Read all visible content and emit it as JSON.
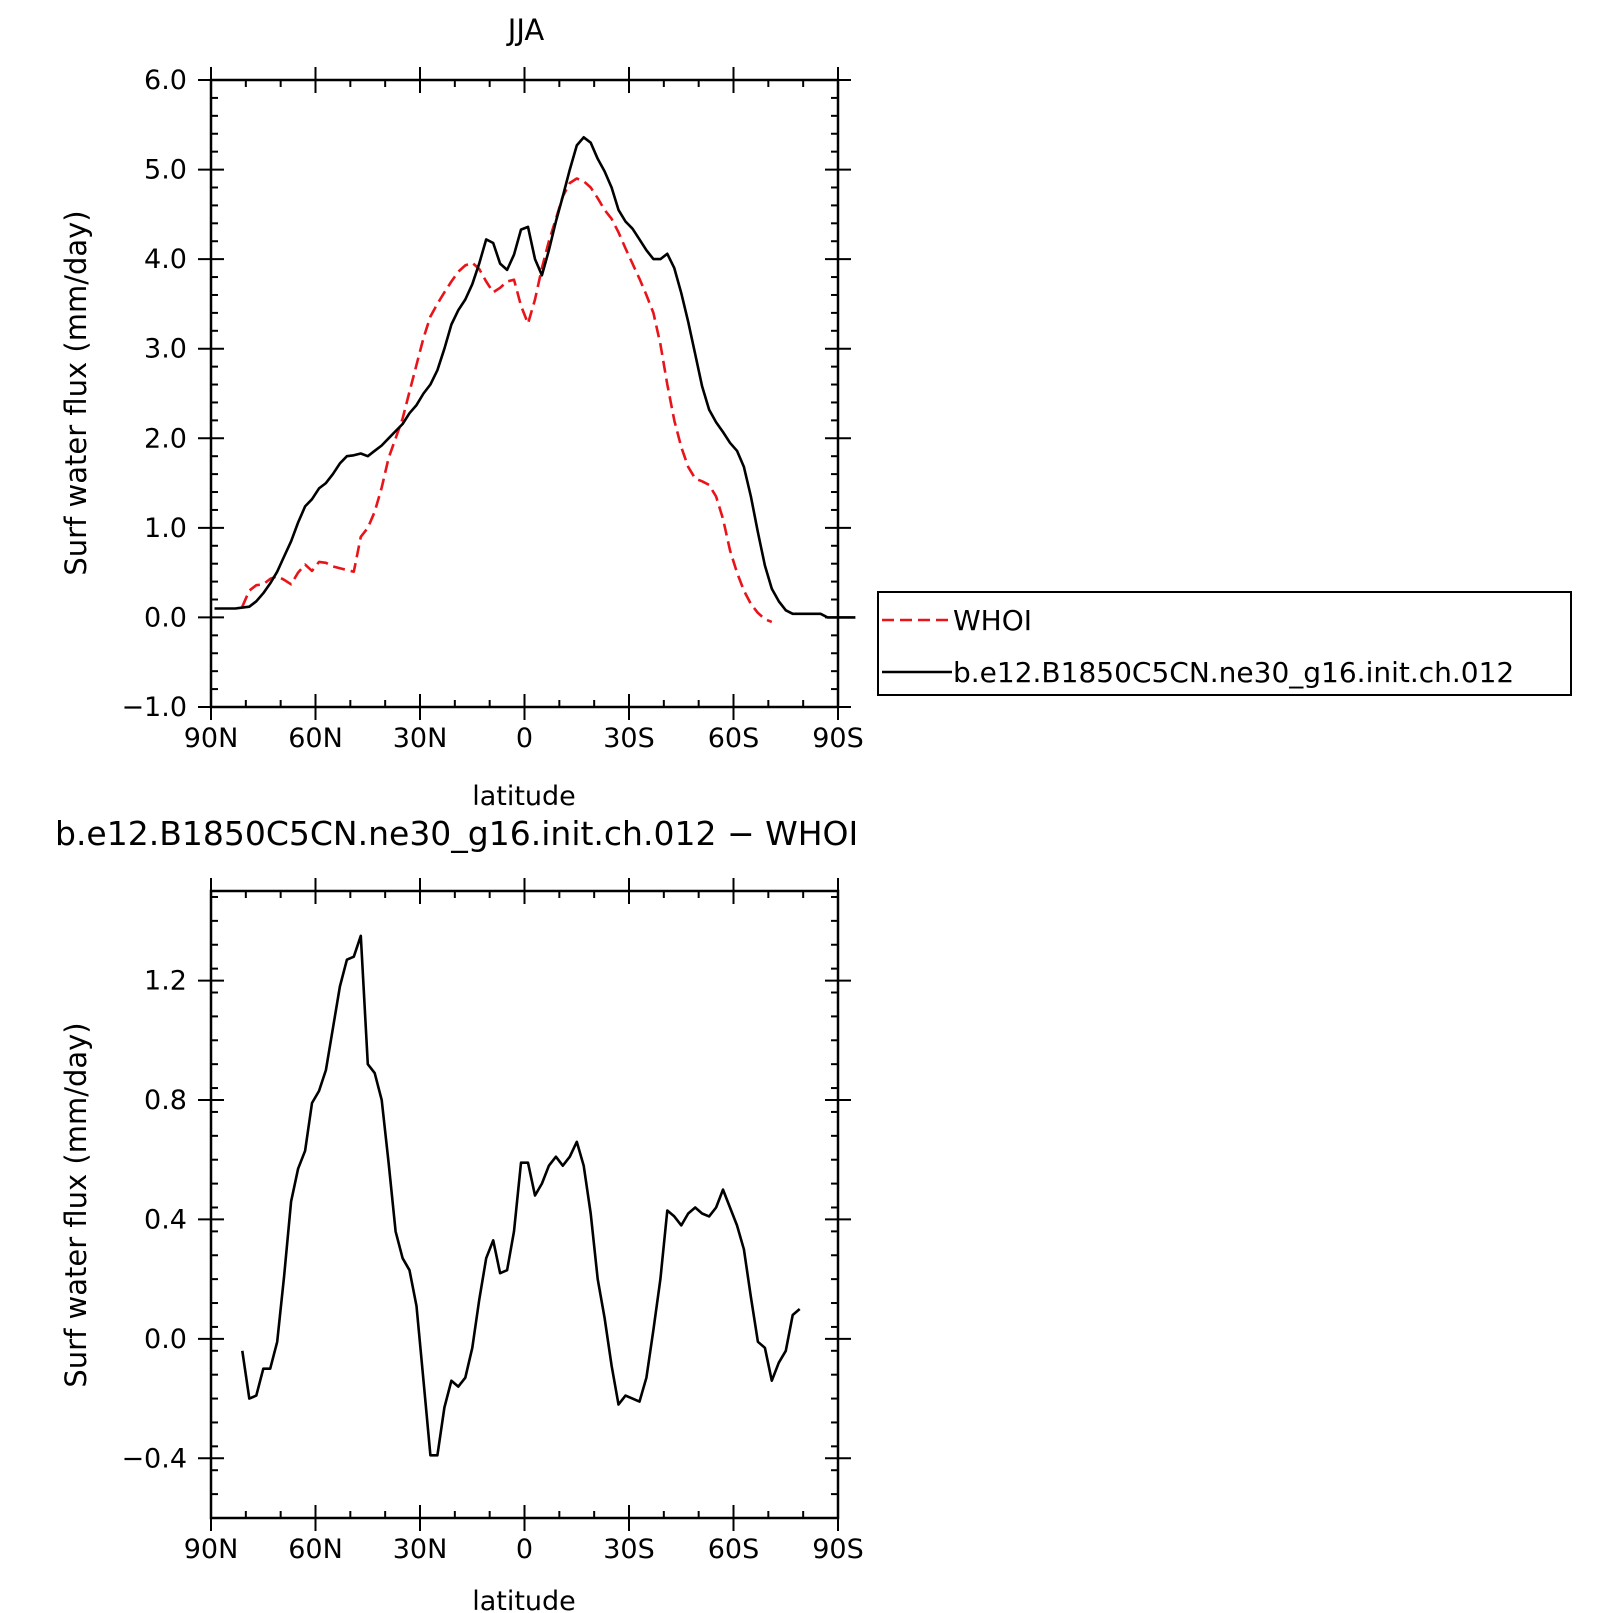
{
  "chart_data": [
    {
      "type": "line",
      "title": "JJA",
      "xlabel": "latitude",
      "ylabel": "Surf water flux (mm/day)",
      "xlim": [
        90,
        -90
      ],
      "ylim": [
        -1.0,
        6.0
      ],
      "xticks": [
        {
          "v": 90,
          "label": "90N"
        },
        {
          "v": 60,
          "label": "60N"
        },
        {
          "v": 30,
          "label": "30N"
        },
        {
          "v": 0,
          "label": "0"
        },
        {
          "v": -30,
          "label": "30S"
        },
        {
          "v": -60,
          "label": "60S"
        },
        {
          "v": -90,
          "label": "90S"
        }
      ],
      "yticks": [
        {
          "v": 6.0,
          "label": "6.0"
        },
        {
          "v": 5.0,
          "label": "5.0"
        },
        {
          "v": 4.0,
          "label": "4.0"
        },
        {
          "v": 3.0,
          "label": "3.0"
        },
        {
          "v": 2.0,
          "label": "2.0"
        },
        {
          "v": 1.0,
          "label": "1.0"
        },
        {
          "v": 0.0,
          "label": "0.0"
        },
        {
          "v": -1.0,
          "label": "−1.0"
        }
      ],
      "legend": {
        "position": "right"
      },
      "grid": false,
      "series": [
        {
          "name": "WHOI",
          "color": "#e8141a",
          "dash": "dashed",
          "points": [
            [
              81,
              0.12
            ],
            [
              79,
              0.3
            ],
            [
              77,
              0.36
            ],
            [
              75,
              0.37
            ],
            [
              73,
              0.43
            ],
            [
              71,
              0.46
            ],
            [
              69,
              0.42
            ],
            [
              67,
              0.37
            ],
            [
              65,
              0.5
            ],
            [
              63,
              0.59
            ],
            [
              61,
              0.52
            ],
            [
              59,
              0.62
            ],
            [
              57,
              0.61
            ],
            [
              55,
              0.57
            ],
            [
              53,
              0.55
            ],
            [
              51,
              0.53
            ],
            [
              49,
              0.51
            ],
            [
              47,
              0.9
            ],
            [
              45,
              1.0
            ],
            [
              43,
              1.18
            ],
            [
              41,
              1.45
            ],
            [
              39,
              1.78
            ],
            [
              37,
              2.0
            ],
            [
              35,
              2.22
            ],
            [
              33,
              2.52
            ],
            [
              31,
              2.82
            ],
            [
              29,
              3.12
            ],
            [
              27,
              3.36
            ],
            [
              25,
              3.5
            ],
            [
              23,
              3.63
            ],
            [
              21,
              3.75
            ],
            [
              19,
              3.86
            ],
            [
              17,
              3.93
            ],
            [
              15,
              3.96
            ],
            [
              13,
              3.89
            ],
            [
              11,
              3.75
            ],
            [
              9,
              3.63
            ],
            [
              7,
              3.68
            ],
            [
              5,
              3.75
            ],
            [
              3,
              3.77
            ],
            [
              1,
              3.48
            ],
            [
              -1,
              3.28
            ],
            [
              -3,
              3.55
            ],
            [
              -5,
              3.9
            ],
            [
              -7,
              4.2
            ],
            [
              -9,
              4.45
            ],
            [
              -11,
              4.7
            ],
            [
              -13,
              4.85
            ],
            [
              -15,
              4.9
            ],
            [
              -17,
              4.87
            ],
            [
              -19,
              4.8
            ],
            [
              -21,
              4.68
            ],
            [
              -23,
              4.55
            ],
            [
              -25,
              4.45
            ],
            [
              -27,
              4.3
            ],
            [
              -29,
              4.12
            ],
            [
              -31,
              3.95
            ],
            [
              -33,
              3.78
            ],
            [
              -35,
              3.6
            ],
            [
              -37,
              3.4
            ],
            [
              -39,
              3.05
            ],
            [
              -41,
              2.6
            ],
            [
              -43,
              2.2
            ],
            [
              -45,
              1.9
            ],
            [
              -47,
              1.68
            ],
            [
              -49,
              1.55
            ],
            [
              -51,
              1.52
            ],
            [
              -53,
              1.48
            ],
            [
              -55,
              1.35
            ],
            [
              -57,
              1.1
            ],
            [
              -59,
              0.75
            ],
            [
              -61,
              0.5
            ],
            [
              -63,
              0.3
            ],
            [
              -65,
              0.15
            ],
            [
              -67,
              0.05
            ],
            [
              -69,
              -0.02
            ],
            [
              -71,
              -0.05
            ]
          ]
        },
        {
          "name": "b.e12.B1850C5CN.ne30_g16.init.ch.012",
          "color": "#000000",
          "dash": "solid",
          "points": [
            [
              89,
              0.1
            ],
            [
              87,
              0.1
            ],
            [
              85,
              0.1
            ],
            [
              83,
              0.1
            ],
            [
              81,
              0.11
            ],
            [
              79,
              0.12
            ],
            [
              77,
              0.18
            ],
            [
              75,
              0.27
            ],
            [
              73,
              0.38
            ],
            [
              71,
              0.51
            ],
            [
              69,
              0.68
            ],
            [
              67,
              0.85
            ],
            [
              65,
              1.06
            ],
            [
              63,
              1.24
            ],
            [
              61,
              1.32
            ],
            [
              59,
              1.44
            ],
            [
              57,
              1.5
            ],
            [
              55,
              1.6
            ],
            [
              53,
              1.72
            ],
            [
              51,
              1.8
            ],
            [
              49,
              1.81
            ],
            [
              47,
              1.83
            ],
            [
              45,
              1.8
            ],
            [
              43,
              1.86
            ],
            [
              41,
              1.92
            ],
            [
              39,
              2.0
            ],
            [
              37,
              2.08
            ],
            [
              35,
              2.16
            ],
            [
              33,
              2.28
            ],
            [
              31,
              2.37
            ],
            [
              29,
              2.5
            ],
            [
              27,
              2.6
            ],
            [
              25,
              2.76
            ],
            [
              23,
              3.0
            ],
            [
              21,
              3.27
            ],
            [
              19,
              3.43
            ],
            [
              17,
              3.55
            ],
            [
              15,
              3.72
            ],
            [
              13,
              3.95
            ],
            [
              11,
              4.22
            ],
            [
              9,
              4.18
            ],
            [
              7,
              3.95
            ],
            [
              5,
              3.88
            ],
            [
              3,
              4.05
            ],
            [
              1,
              4.33
            ],
            [
              -1,
              4.36
            ],
            [
              -3,
              4.0
            ],
            [
              -5,
              3.82
            ],
            [
              -7,
              4.1
            ],
            [
              -9,
              4.42
            ],
            [
              -11,
              4.7
            ],
            [
              -13,
              5.0
            ],
            [
              -15,
              5.27
            ],
            [
              -17,
              5.36
            ],
            [
              -19,
              5.3
            ],
            [
              -21,
              5.12
            ],
            [
              -23,
              4.98
            ],
            [
              -25,
              4.8
            ],
            [
              -27,
              4.55
            ],
            [
              -29,
              4.42
            ],
            [
              -31,
              4.34
            ],
            [
              -33,
              4.22
            ],
            [
              -35,
              4.1
            ],
            [
              -37,
              4.0
            ],
            [
              -39,
              4.0
            ],
            [
              -41,
              4.06
            ],
            [
              -43,
              3.9
            ],
            [
              -45,
              3.62
            ],
            [
              -47,
              3.3
            ],
            [
              -49,
              2.94
            ],
            [
              -51,
              2.58
            ],
            [
              -53,
              2.32
            ],
            [
              -55,
              2.18
            ],
            [
              -57,
              2.07
            ],
            [
              -59,
              1.95
            ],
            [
              -61,
              1.86
            ],
            [
              -63,
              1.68
            ],
            [
              -65,
              1.35
            ],
            [
              -67,
              0.95
            ],
            [
              -69,
              0.58
            ],
            [
              -71,
              0.32
            ],
            [
              -73,
              0.18
            ],
            [
              -75,
              0.08
            ],
            [
              -77,
              0.04
            ],
            [
              -79,
              0.04
            ],
            [
              -81,
              0.04
            ],
            [
              -83,
              0.04
            ],
            [
              -85,
              0.04
            ],
            [
              -87,
              0.0
            ],
            [
              -89,
              0.0
            ],
            [
              -91,
              0.0
            ],
            [
              -93,
              0.0
            ],
            [
              -95,
              0.0
            ]
          ]
        }
      ]
    },
    {
      "type": "line",
      "title": "b.e12.B1850C5CN.ne30_g16.init.ch.012 − WHOI",
      "xlabel": "latitude",
      "ylabel": "Surf water flux (mm/day)",
      "xlim": [
        90,
        -90
      ],
      "ylim": [
        -0.6,
        1.5
      ],
      "xticks": [
        {
          "v": 90,
          "label": "90N"
        },
        {
          "v": 60,
          "label": "60N"
        },
        {
          "v": 30,
          "label": "30N"
        },
        {
          "v": 0,
          "label": "0"
        },
        {
          "v": -30,
          "label": "30S"
        },
        {
          "v": -60,
          "label": "60S"
        },
        {
          "v": -90,
          "label": "90S"
        }
      ],
      "yticks": [
        {
          "v": 1.2,
          "label": "1.2"
        },
        {
          "v": 0.8,
          "label": "0.8"
        },
        {
          "v": 0.4,
          "label": "0.4"
        },
        {
          "v": 0.0,
          "label": "0.0"
        },
        {
          "v": -0.4,
          "label": "−0.4"
        }
      ],
      "grid": false,
      "series": [
        {
          "color": "#000000",
          "dash": "solid",
          "points": [
            [
              81,
              -0.04
            ],
            [
              79,
              -0.2
            ],
            [
              77,
              -0.19
            ],
            [
              75,
              -0.1
            ],
            [
              73,
              -0.1
            ],
            [
              71,
              -0.01
            ],
            [
              69,
              0.21
            ],
            [
              67,
              0.46
            ],
            [
              65,
              0.57
            ],
            [
              63,
              0.63
            ],
            [
              61,
              0.79
            ],
            [
              59,
              0.83
            ],
            [
              57,
              0.9
            ],
            [
              55,
              1.04
            ],
            [
              53,
              1.18
            ],
            [
              51,
              1.27
            ],
            [
              49,
              1.28
            ],
            [
              47,
              1.35
            ],
            [
              45,
              0.92
            ],
            [
              43,
              0.89
            ],
            [
              41,
              0.8
            ],
            [
              39,
              0.59
            ],
            [
              37,
              0.36
            ],
            [
              35,
              0.27
            ],
            [
              33,
              0.23
            ],
            [
              31,
              0.11
            ],
            [
              29,
              -0.14
            ],
            [
              27,
              -0.39
            ],
            [
              25,
              -0.39
            ],
            [
              23,
              -0.23
            ],
            [
              21,
              -0.14
            ],
            [
              19,
              -0.16
            ],
            [
              17,
              -0.13
            ],
            [
              15,
              -0.03
            ],
            [
              13,
              0.13
            ],
            [
              11,
              0.27
            ],
            [
              9,
              0.33
            ],
            [
              7,
              0.22
            ],
            [
              5,
              0.23
            ],
            [
              3,
              0.36
            ],
            [
              1,
              0.59
            ],
            [
              -1,
              0.59
            ],
            [
              -3,
              0.48
            ],
            [
              -5,
              0.52
            ],
            [
              -7,
              0.58
            ],
            [
              -9,
              0.61
            ],
            [
              -11,
              0.58
            ],
            [
              -13,
              0.61
            ],
            [
              -15,
              0.66
            ],
            [
              -17,
              0.58
            ],
            [
              -19,
              0.42
            ],
            [
              -21,
              0.2
            ],
            [
              -23,
              0.07
            ],
            [
              -25,
              -0.09
            ],
            [
              -27,
              -0.22
            ],
            [
              -29,
              -0.19
            ],
            [
              -31,
              -0.2
            ],
            [
              -33,
              -0.21
            ],
            [
              -35,
              -0.13
            ],
            [
              -37,
              0.03
            ],
            [
              -39,
              0.2
            ],
            [
              -41,
              0.43
            ],
            [
              -43,
              0.41
            ],
            [
              -45,
              0.38
            ],
            [
              -47,
              0.42
            ],
            [
              -49,
              0.44
            ],
            [
              -51,
              0.42
            ],
            [
              -53,
              0.41
            ],
            [
              -55,
              0.44
            ],
            [
              -57,
              0.5
            ],
            [
              -59,
              0.44
            ],
            [
              -61,
              0.38
            ],
            [
              -63,
              0.3
            ],
            [
              -65,
              0.14
            ],
            [
              -67,
              -0.01
            ],
            [
              -69,
              -0.03
            ],
            [
              -71,
              -0.14
            ],
            [
              -73,
              -0.08
            ],
            [
              -75,
              -0.04
            ],
            [
              -77,
              0.08
            ],
            [
              -79,
              0.1
            ]
          ]
        }
      ]
    }
  ]
}
